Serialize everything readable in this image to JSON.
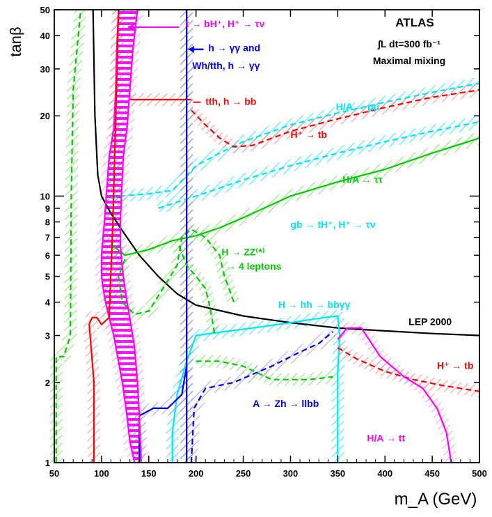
{
  "chart_data": {
    "type": "line",
    "xlabel": "m_A (GeV)",
    "ylabel": "tanβ",
    "xlim": [
      50,
      500
    ],
    "ylim": [
      1,
      50
    ],
    "yscale": "log",
    "x_ticks": [
      50,
      100,
      150,
      200,
      250,
      300,
      350,
      400,
      450,
      500
    ],
    "y_ticks": [
      1,
      2,
      3,
      4,
      5,
      6,
      7,
      8,
      9,
      10,
      20,
      30,
      40,
      50
    ],
    "header": {
      "line1": "ATLAS",
      "line2": "∫L dt=300 fb⁻¹",
      "line3": "Maximal mixing"
    },
    "annotations": [
      {
        "id": "t-bh",
        "text": "t → bH⁺, H⁺ → τν",
        "color": "#ff00ff",
        "x": 189,
        "y": 43
      },
      {
        "id": "h-gg",
        "text": "h → γγ and",
        "color": "#0000ff",
        "x": 213,
        "y": 35
      },
      {
        "id": "h-gg2",
        "text": "Wh/tth, h → γγ",
        "color": "#0000ff",
        "x": 196,
        "y": 30
      },
      {
        "id": "tth-bb",
        "text": "tth, h → bb",
        "color": "#ff0000",
        "x": 210,
        "y": 22
      },
      {
        "id": "ha-mumu",
        "text": "H/A → μμ",
        "color": "#00e5ff",
        "x": 348,
        "y": 21
      },
      {
        "id": "hp-tb-upper",
        "text": "H⁺ → tb",
        "color": "#ff0000",
        "x": 300,
        "y": 16.5
      },
      {
        "id": "ha-tautau",
        "text": "H/A → ττ",
        "color": "#00cc00",
        "x": 355,
        "y": 11.2
      },
      {
        "id": "gb-th",
        "text": "gb → tH⁺, H⁺ → τν",
        "color": "#00e5ff",
        "x": 300,
        "y": 7.6
      },
      {
        "id": "h-zz",
        "text": "H → ZZ⁽*⁾",
        "color": "#00cc00",
        "x": 227,
        "y": 6
      },
      {
        "id": "h-zz2",
        "text": "→ 4 leptons",
        "color": "#00cc00",
        "x": 232,
        "y": 5.3
      },
      {
        "id": "h-hh",
        "text": "H → hh → bbγγ",
        "color": "#00e5ff",
        "x": 287,
        "y": 3.8
      },
      {
        "id": "lep",
        "text": "LEP 2000",
        "color": "#000000",
        "x": 425,
        "y": 3.28
      },
      {
        "id": "hp-tb-lower",
        "text": "H⁺ → tb",
        "color": "#ff0000",
        "x": 455,
        "y": 2.25
      },
      {
        "id": "a-zh",
        "text": "A → Zh → llbb",
        "color": "#0000ff",
        "x": 260,
        "y": 1.62
      },
      {
        "id": "ha-tt",
        "text": "H/A → tt",
        "color": "#ff00ff",
        "x": 381,
        "y": 1.2
      }
    ],
    "series": [
      {
        "id": "lep-2000",
        "color": "#000000",
        "dash": false,
        "points": [
          [
            91,
            50
          ],
          [
            93,
            20
          ],
          [
            96,
            12
          ],
          [
            100,
            10
          ],
          [
            110,
            8.6
          ],
          [
            120,
            7.6
          ],
          [
            140,
            6
          ],
          [
            160,
            5
          ],
          [
            180,
            4.3
          ],
          [
            200,
            3.9
          ],
          [
            250,
            3.55
          ],
          [
            300,
            3.35
          ],
          [
            350,
            3.2
          ],
          [
            400,
            3.12
          ],
          [
            450,
            3.05
          ],
          [
            500,
            3.0
          ]
        ]
      },
      {
        "id": "ha-mumu-line",
        "color": "#00e5ff",
        "dash": true,
        "points": [
          [
            110,
            9.8
          ],
          [
            120,
            10
          ],
          [
            150,
            10.2
          ],
          [
            175,
            10.5
          ],
          [
            200,
            13
          ],
          [
            225,
            14.5
          ],
          [
            250,
            16
          ],
          [
            300,
            18.5
          ],
          [
            350,
            20.5
          ],
          [
            400,
            22.5
          ],
          [
            450,
            24.5
          ],
          [
            500,
            26.5
          ]
        ]
      },
      {
        "id": "ha-tautau-line",
        "color": "#00cc00",
        "dash": false,
        "points": [
          [
            110,
            6.6
          ],
          [
            125,
            6.0
          ],
          [
            150,
            6.3
          ],
          [
            175,
            6.8
          ],
          [
            200,
            7.1
          ],
          [
            225,
            7.6
          ],
          [
            250,
            8.3
          ],
          [
            300,
            10
          ],
          [
            350,
            11.3
          ],
          [
            400,
            12.6
          ],
          [
            450,
            14.5
          ],
          [
            500,
            16.5
          ]
        ]
      },
      {
        "id": "hp-tb-upper-line",
        "color": "#ff0000",
        "dash": true,
        "points": [
          [
            195,
            21
          ],
          [
            210,
            18.5
          ],
          [
            225,
            16.5
          ],
          [
            240,
            15.3
          ],
          [
            260,
            15.5
          ],
          [
            300,
            17.5
          ],
          [
            350,
            19.5
          ],
          [
            400,
            21.5
          ],
          [
            450,
            23.5
          ],
          [
            500,
            25
          ]
        ]
      },
      {
        "id": "tth-bb-line",
        "color": "#ff0000",
        "dash": false,
        "points": [
          [
            130,
            23
          ],
          [
            195,
            23
          ]
        ]
      },
      {
        "id": "h-gg-line",
        "color": "#0000ff",
        "dash": false,
        "points": [
          [
            190,
            50
          ],
          [
            190,
            1
          ]
        ]
      },
      {
        "id": "gb-th-line",
        "color": "#00e5ff",
        "dash": true,
        "points": [
          [
            160,
            9
          ],
          [
            200,
            10
          ],
          [
            250,
            11.5
          ],
          [
            300,
            13
          ],
          [
            350,
            14.5
          ],
          [
            400,
            16
          ],
          [
            450,
            17.5
          ],
          [
            500,
            19
          ]
        ]
      },
      {
        "id": "h-zz-line",
        "color": "#00cc00",
        "dash": true,
        "points": [
          [
            125,
            5.8
          ],
          [
            118,
            5
          ],
          [
            122,
            4
          ],
          [
            135,
            3.6
          ],
          [
            150,
            3.7
          ],
          [
            165,
            4.5
          ],
          [
            180,
            5.5
          ],
          [
            185,
            7
          ],
          [
            195,
            7.5
          ],
          [
            210,
            7
          ],
          [
            225,
            6
          ],
          [
            230,
            5
          ],
          [
            235,
            4.5
          ],
          [
            240,
            4
          ]
        ]
      },
      {
        "id": "h-hh-line",
        "color": "#00e5ff",
        "dash": false,
        "points": [
          [
            175,
            1
          ],
          [
            175,
            1.3
          ],
          [
            180,
            1.8
          ],
          [
            190,
            2.4
          ],
          [
            200,
            3
          ],
          [
            230,
            3.1
          ],
          [
            260,
            3.2
          ],
          [
            300,
            3.35
          ],
          [
            335,
            3.5
          ],
          [
            350,
            3.55
          ],
          [
            352,
            3
          ],
          [
            350,
            2.2
          ],
          [
            350,
            1
          ]
        ]
      },
      {
        "id": "hp-tb-lower-line",
        "color": "#ff0000",
        "dash": true,
        "points": [
          [
            350,
            2.7
          ],
          [
            370,
            2.45
          ],
          [
            400,
            2.2
          ],
          [
            430,
            2.05
          ],
          [
            460,
            1.95
          ],
          [
            500,
            1.85
          ]
        ]
      },
      {
        "id": "hp-tb-lower-line-2",
        "color": "#00cc00",
        "dash": true,
        "points": [
          [
            200,
            2.4
          ],
          [
            225,
            2.4
          ],
          [
            250,
            2.3
          ],
          [
            280,
            2.05
          ],
          [
            320,
            2.05
          ],
          [
            345,
            2.1
          ]
        ]
      },
      {
        "id": "a-zh-line",
        "color": "#0000ff",
        "dash": true,
        "points": [
          [
            195,
            1
          ],
          [
            198,
            1.6
          ],
          [
            210,
            1.9
          ],
          [
            240,
            2
          ],
          [
            280,
            2.3
          ],
          [
            310,
            2.6
          ],
          [
            330,
            2.8
          ],
          [
            340,
            3.0
          ],
          [
            345,
            3.1
          ]
        ]
      },
      {
        "id": "a-zh-left",
        "color": "#0000ff",
        "dash": false,
        "points": [
          [
            140,
            1
          ],
          [
            140,
            1.5
          ],
          [
            155,
            1.6
          ],
          [
            170,
            1.6
          ],
          [
            185,
            1.8
          ],
          [
            190,
            2.3
          ]
        ]
      },
      {
        "id": "ha-tt-line",
        "color": "#ff00ff",
        "dash": false,
        "points": [
          [
            350,
            2.9
          ],
          [
            360,
            3.2
          ],
          [
            375,
            3.2
          ],
          [
            395,
            2.5
          ],
          [
            420,
            2.1
          ],
          [
            440,
            1.9
          ],
          [
            455,
            1.6
          ],
          [
            465,
            1.3
          ],
          [
            470,
            1
          ]
        ]
      },
      {
        "id": "t-bh-line-a",
        "color": "#ff00ff",
        "dash": false,
        "points": [
          [
            118,
            50
          ],
          [
            116,
            35
          ],
          [
            115,
            25
          ],
          [
            113,
            18
          ],
          [
            108,
            14
          ],
          [
            105,
            10
          ],
          [
            103,
            8
          ],
          [
            100,
            6
          ],
          [
            100,
            5
          ],
          [
            103,
            4.2
          ],
          [
            108,
            3.5
          ],
          [
            113,
            3
          ],
          [
            117,
            2.5
          ],
          [
            122,
            2
          ],
          [
            127,
            1.5
          ],
          [
            130,
            1.2
          ],
          [
            135,
            1
          ]
        ]
      },
      {
        "id": "t-bh-line-b",
        "color": "#ff00ff",
        "dash": false,
        "points": [
          [
            138,
            50
          ],
          [
            133,
            35
          ],
          [
            130,
            25
          ],
          [
            127,
            18
          ],
          [
            123,
            14
          ],
          [
            121,
            10
          ],
          [
            120,
            8
          ],
          [
            120,
            6.5
          ],
          [
            123,
            5
          ],
          [
            127,
            4
          ],
          [
            131,
            3.3
          ],
          [
            135,
            2.7
          ],
          [
            138,
            2
          ],
          [
            140,
            1.5
          ],
          [
            142,
            1
          ]
        ]
      },
      {
        "id": "wh-tth-line",
        "color": "#0000ff",
        "dash": false,
        "points": [
          [
            190,
            50
          ],
          [
            190,
            1
          ]
        ]
      },
      {
        "id": "red-left",
        "color": "#ff0000",
        "dash": false,
        "points": [
          [
            92,
            1
          ],
          [
            92,
            2
          ],
          [
            87,
            3.3
          ],
          [
            90,
            3.5
          ],
          [
            95,
            3.5
          ],
          [
            100,
            3.3
          ],
          [
            108,
            3.5
          ],
          [
            112,
            8
          ],
          [
            115,
            20
          ],
          [
            118,
            50
          ]
        ]
      },
      {
        "id": "green-left",
        "color": "#00cc00",
        "dash": true,
        "points": [
          [
            52,
            1
          ],
          [
            52,
            2.5
          ],
          [
            60,
            2.5
          ],
          [
            67,
            3
          ],
          [
            68,
            10
          ],
          [
            70,
            25
          ],
          [
            78,
            50
          ]
        ]
      },
      {
        "id": "h-zz-inner",
        "color": "#00cc00",
        "dash": true,
        "points": [
          [
            182,
            6.5
          ],
          [
            190,
            5.5
          ],
          [
            200,
            5
          ],
          [
            210,
            4.5
          ],
          [
            215,
            3.8
          ],
          [
            220,
            3
          ]
        ]
      }
    ]
  }
}
